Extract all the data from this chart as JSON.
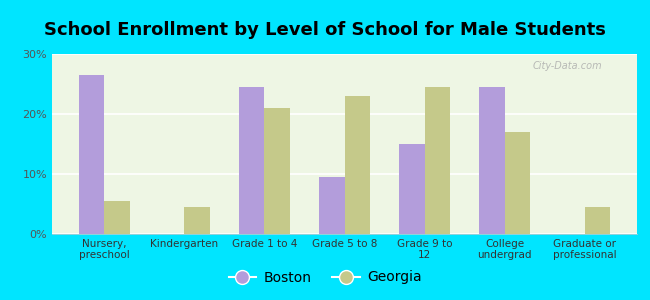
{
  "title": "School Enrollment by Level of School for Male Students",
  "categories": [
    "Nursery,\npreschool",
    "Kindergarten",
    "Grade 1 to 4",
    "Grade 5 to 8",
    "Grade 9 to\n12",
    "College\nundergrad",
    "Graduate or\nprofessional"
  ],
  "boston_values": [
    26.5,
    0,
    24.5,
    9.5,
    15.0,
    24.5,
    0
  ],
  "georgia_values": [
    5.5,
    4.5,
    21.0,
    23.0,
    24.5,
    17.0,
    4.5
  ],
  "boston_color": "#b39ddb",
  "georgia_color": "#c5c98a",
  "background_color": "#00e5ff",
  "plot_bg_gradient_top": "#e8f5e0",
  "plot_bg_gradient_bottom": "#f8fdf0",
  "ylim": [
    0,
    30
  ],
  "yticks": [
    0,
    10,
    20,
    30
  ],
  "ytick_labels": [
    "0%",
    "10%",
    "20%",
    "30%"
  ],
  "legend_labels": [
    "Boston",
    "Georgia"
  ],
  "title_fontsize": 13,
  "bar_width": 0.32,
  "figsize": [
    6.5,
    3.0
  ],
  "dpi": 100
}
